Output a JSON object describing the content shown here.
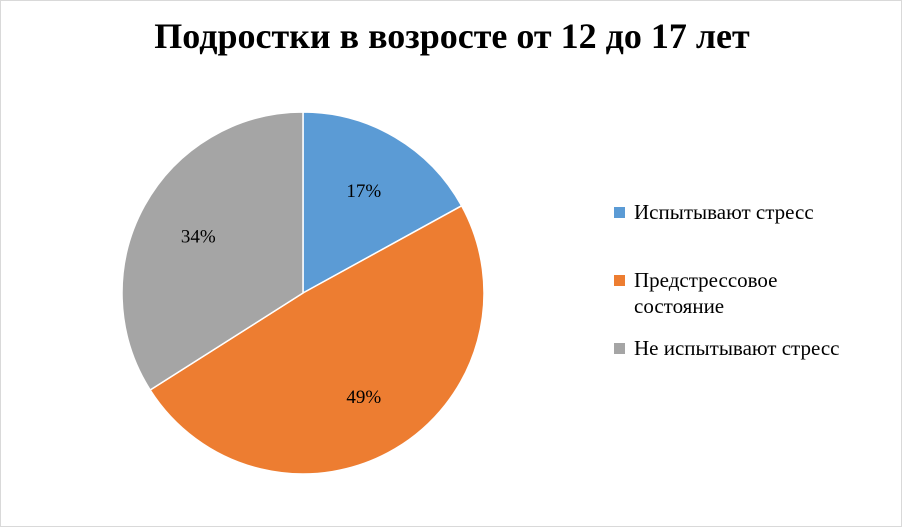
{
  "chart_data": {
    "type": "pie",
    "title": "Подростки в возросте от 12 до 17 лет",
    "series": [
      {
        "labels": [
          "Испытывают стресс",
          "Предстрессовое состояние",
          "Не испытывают стресс"
        ],
        "values": [
          17,
          49,
          34
        ],
        "data_labels": [
          "17%",
          "49%",
          "34%"
        ],
        "colors": [
          "#5b9bd5",
          "#ed7d31",
          "#a5a5a5"
        ]
      }
    ],
    "legend_position": "right",
    "start_angle_deg": 0,
    "direction": "clockwise"
  },
  "legend": {
    "items": [
      {
        "label": "Испытывают стресс",
        "color": "#5b9bd5"
      },
      {
        "label": "Предстрессовое состояние",
        "color": "#ed7d31"
      },
      {
        "label": "Не испытывают стресс",
        "color": "#a5a5a5"
      }
    ]
  }
}
